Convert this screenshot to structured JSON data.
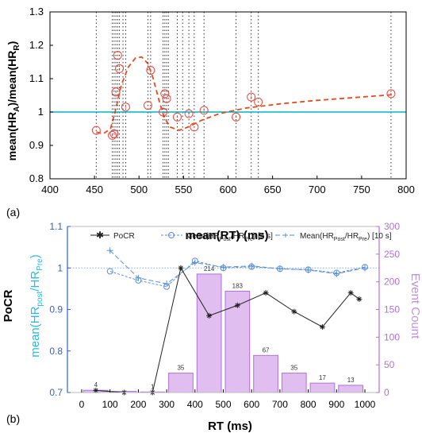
{
  "chart_data": [
    {
      "panel_label": "(a)",
      "type": "scatter",
      "xlabel": "mean(RT) (ms)",
      "ylabel_main": "mean(HR",
      "ylabel_sub1": "A",
      "ylabel_mid": ")/mean(HR",
      "ylabel_sub2": "R",
      "ylabel_end": ")",
      "xlim": [
        400,
        800
      ],
      "ylim": [
        0.8,
        1.3
      ],
      "xticks": [
        400,
        450,
        500,
        550,
        600,
        650,
        700,
        750,
        800
      ],
      "yticks": [
        0.8,
        0.9,
        1,
        1.1,
        1.2,
        1.3
      ],
      "ytick_labels": [
        "0.8",
        "0.9",
        "1",
        "1.1",
        "1.2",
        "1.3"
      ],
      "reference_line": {
        "y": 1,
        "color": "#00b3c7"
      },
      "vertical_lines": [
        452,
        470,
        472,
        474,
        476,
        478,
        482,
        485,
        510,
        513,
        527,
        529,
        531,
        533,
        543,
        549,
        556,
        562,
        573,
        609,
        626,
        634,
        783
      ],
      "points": [
        {
          "x": 452,
          "y": 0.945
        },
        {
          "x": 470,
          "y": 0.93
        },
        {
          "x": 472,
          "y": 0.935
        },
        {
          "x": 474,
          "y": 1.06
        },
        {
          "x": 476,
          "y": 1.17
        },
        {
          "x": 478,
          "y": 1.13
        },
        {
          "x": 485,
          "y": 1.015
        },
        {
          "x": 510,
          "y": 1.02
        },
        {
          "x": 513,
          "y": 1.125
        },
        {
          "x": 527,
          "y": 1.0
        },
        {
          "x": 529,
          "y": 1.055
        },
        {
          "x": 531,
          "y": 1.04
        },
        {
          "x": 543,
          "y": 0.985
        },
        {
          "x": 556,
          "y": 0.995
        },
        {
          "x": 562,
          "y": 0.955
        },
        {
          "x": 573,
          "y": 1.005
        },
        {
          "x": 609,
          "y": 0.985
        },
        {
          "x": 626,
          "y": 1.045
        },
        {
          "x": 634,
          "y": 1.03
        },
        {
          "x": 783,
          "y": 1.055
        }
      ],
      "fit_curve": [
        [
          452,
          0.94
        ],
        [
          460,
          0.935
        ],
        [
          468,
          0.95
        ],
        [
          474,
          1.01
        ],
        [
          480,
          1.08
        ],
        [
          488,
          1.135
        ],
        [
          496,
          1.162
        ],
        [
          503,
          1.165
        ],
        [
          510,
          1.145
        ],
        [
          516,
          1.1
        ],
        [
          522,
          1.04
        ],
        [
          528,
          0.985
        ],
        [
          535,
          0.955
        ],
        [
          545,
          0.945
        ],
        [
          555,
          0.955
        ],
        [
          570,
          0.975
        ],
        [
          590,
          0.995
        ],
        [
          620,
          1.012
        ],
        [
          660,
          1.025
        ],
        [
          700,
          1.035
        ],
        [
          750,
          1.045
        ],
        [
          785,
          1.052
        ]
      ],
      "colors": {
        "points": "#e8473c",
        "fit": "#e84a1e",
        "grid": "#333333"
      }
    },
    {
      "panel_label": "(b)",
      "type": "bar",
      "xlabel": "RT (ms)",
      "ylabel_left_outer": "PoCR",
      "ylabel_left_inner_main": "mean(HR",
      "ylabel_left_inner_sub1": "post",
      "ylabel_left_inner_mid": "/HR",
      "ylabel_left_inner_sub2": "Pre",
      "ylabel_left_inner_end": ")",
      "ylabel_right": "Event Count",
      "xlim": [
        0,
        1000
      ],
      "ylim_left": [
        0.7,
        1.1
      ],
      "ylim_right": [
        0,
        300
      ],
      "xticks": [
        0,
        100,
        200,
        300,
        400,
        500,
        600,
        700,
        800,
        900,
        1000
      ],
      "yticks_left": [
        0.7,
        0.8,
        0.9,
        1,
        1.1
      ],
      "ytick_left_labels": [
        "0.7",
        "0.8",
        "0.9",
        "1",
        "1.1"
      ],
      "yticks_right": [
        0,
        50,
        100,
        150,
        200,
        250,
        300
      ],
      "bars": {
        "x_centers": [
          50,
          150,
          250,
          350,
          450,
          550,
          650,
          750,
          850,
          950
        ],
        "values": [
          4,
          2,
          1,
          35,
          214,
          183,
          67,
          35,
          17,
          13
        ],
        "labels": [
          "4",
          "",
          "1",
          "35",
          "214",
          "183",
          "67",
          "35",
          "17",
          "13"
        ]
      },
      "legend": {
        "pocr": "PoCR",
        "mean5_main": "Mean(HR",
        "mean5_sub1": "Post",
        "mean5_mid": "/HR",
        "mean5_sub2": "Pre",
        "mean5_end": ") [5 s]",
        "mean10_main": "Mean(HR",
        "mean10_sub1": "Post",
        "mean10_mid": "/HR",
        "mean10_sub2": "Pre",
        "mean10_end": ") [10 s]"
      },
      "reference_line": {
        "y": 1
      },
      "series": [
        {
          "name": "PoCR",
          "x": [
            50,
            150,
            250,
            350,
            450,
            550,
            650,
            750,
            850,
            950
          ],
          "values": [
            0.705,
            0.7,
            0.7,
            1.0,
            0.885,
            0.91,
            0.94,
            0.895,
            0.858,
            0.94
          ]
        },
        {
          "name": "Mean(HRPost/HRPre) [5 s]",
          "x": [
            100,
            200,
            300,
            400,
            500,
            600,
            700,
            800,
            900,
            1000
          ],
          "values": [
            0.992,
            0.97,
            0.955,
            1.017,
            1.0,
            1.003,
            0.998,
            0.996,
            0.988,
            1.002
          ]
        },
        {
          "name": "Mean(HRPost/HRPre) [10 s]",
          "x": [
            100,
            200,
            300,
            400,
            500,
            600,
            700,
            800,
            900,
            1000
          ],
          "values": [
            1.042,
            0.976,
            0.962,
            1.013,
            1.002,
            1.005,
            0.998,
            0.995,
            0.986,
            1.0
          ]
        }
      ],
      "pocr_extra_point": {
        "x": 980,
        "y": 0.925
      },
      "colors": {
        "bars": "#e0bff0",
        "bar_edge": "#b070d8",
        "pocr": "#222222",
        "mean5": "#5b8fd6",
        "mean10": "#5b8fd6",
        "left_axis": "#3060c8",
        "right_axis": "#b070d8",
        "left_label": "#2ab8e0",
        "right_label": "#c090e0"
      }
    }
  ]
}
